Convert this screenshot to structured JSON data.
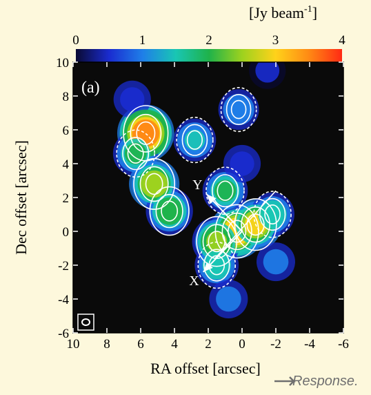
{
  "chart_data": {
    "type": "heatmap",
    "colorbar": {
      "unit_label": "[Jy beam",
      "unit_exponent": "-1",
      "unit_close": "]",
      "range": [
        0,
        4
      ],
      "ticks": [
        "0",
        "1",
        "2",
        "3",
        "4"
      ],
      "colormap": [
        "#0a0a32",
        "#1a2cd0",
        "#1f7ee8",
        "#19c6b4",
        "#1fb24a",
        "#9ed21e",
        "#ffd21a",
        "#ff8a14",
        "#ff2a14"
      ]
    },
    "panel_label": "(a)",
    "xlabel": "RA offset [arcsec]",
    "ylabel": "Dec offset [arcsec]",
    "xlim": [
      10,
      -6
    ],
    "ylim": [
      -6,
      10
    ],
    "xticks": [
      "10",
      "8",
      "6",
      "4",
      "2",
      "0",
      "-2",
      "-4",
      "-6"
    ],
    "yticks": [
      "10",
      "8",
      "6",
      "4",
      "2",
      "0",
      "-2",
      "-4",
      "-6"
    ],
    "vectors": [
      {
        "label": "Y",
        "from": [
          0,
          0
        ],
        "to": [
          2.1,
          2.2
        ]
      },
      {
        "label": "X",
        "from": [
          0,
          0
        ],
        "to": [
          2.3,
          -2.4
        ]
      }
    ],
    "emission_peaks": [
      {
        "x": 5.7,
        "y": 5.8,
        "value": 4.0
      },
      {
        "x": 6.3,
        "y": 4.6,
        "value": 2.2
      },
      {
        "x": 5.2,
        "y": 2.8,
        "value": 3.0
      },
      {
        "x": 4.3,
        "y": 1.2,
        "value": 2.5
      },
      {
        "x": 0.3,
        "y": 0.0,
        "value": 3.6
      },
      {
        "x": -0.8,
        "y": 0.4,
        "value": 3.2
      },
      {
        "x": 1.5,
        "y": -0.6,
        "value": 2.8
      },
      {
        "x": 1.0,
        "y": 2.4,
        "value": 2.2
      },
      {
        "x": 2.8,
        "y": 5.4,
        "value": 1.8
      },
      {
        "x": 0.2,
        "y": 7.2,
        "value": 1.5
      },
      {
        "x": 0.0,
        "y": 4.0,
        "value": 1.0
      },
      {
        "x": -1.8,
        "y": 1.0,
        "value": 2.0
      },
      {
        "x": 1.5,
        "y": -2.0,
        "value": 2.0
      },
      {
        "x": 0.8,
        "y": -4.0,
        "value": 1.2
      },
      {
        "x": -2.0,
        "y": -1.8,
        "value": 1.2
      },
      {
        "x": 6.5,
        "y": 7.8,
        "value": 1.0
      },
      {
        "x": -1.5,
        "y": 9.5,
        "value": 0.9
      }
    ],
    "grid": false
  },
  "watermark": "Response."
}
